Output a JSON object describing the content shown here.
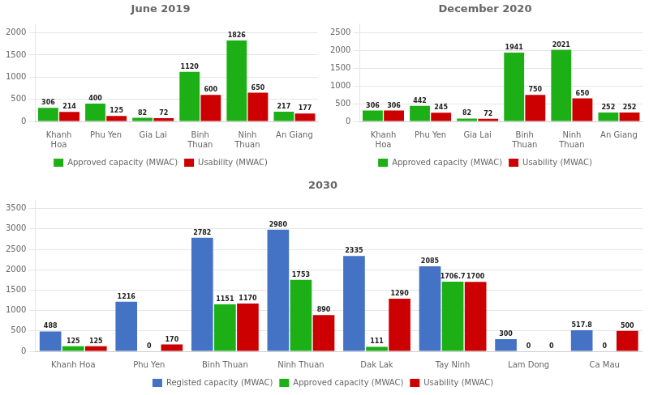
{
  "chart_data": [
    {
      "type": "bar",
      "title": "June 2019",
      "categories": [
        "Khanh\nHoa",
        "Phu Yen",
        "Gia Lai",
        "Binh\nThuan",
        "Ninh\nThuan",
        "An Giang"
      ],
      "series": [
        {
          "name": "Approved capacity (MWAC)",
          "color": "#1DB016",
          "values": [
            306,
            400,
            82,
            1120,
            1826,
            217
          ]
        },
        {
          "name": "Usability (MWAC)",
          "color": "#CC0000",
          "values": [
            214,
            125,
            72,
            600,
            650,
            177
          ]
        }
      ],
      "ylim": [
        0,
        2200
      ],
      "yticks": [
        0,
        500,
        1000,
        1500,
        2000
      ],
      "grid": true,
      "legend": "bottom",
      "data_labels": true
    },
    {
      "type": "bar",
      "title": "December 2020",
      "categories": [
        "Khanh\nHoa",
        "Phu Yen",
        "Gia Lai",
        "Binh\nThuan",
        "Ninh\nThuan",
        "An Giang"
      ],
      "series": [
        {
          "name": "Approved capacity (MWAC)",
          "color": "#1DB016",
          "values": [
            306,
            442,
            82,
            1941,
            2021,
            252
          ]
        },
        {
          "name": "Usability (MWAC)",
          "color": "#CC0000",
          "values": [
            306,
            245,
            72,
            750,
            650,
            252
          ]
        }
      ],
      "ylim": [
        0,
        2750
      ],
      "yticks": [
        0,
        500,
        1000,
        1500,
        2000,
        2500
      ],
      "grid": true,
      "legend": "bottom",
      "data_labels": true
    },
    {
      "type": "bar",
      "title": "2030",
      "categories": [
        "Khanh Hoa",
        "Phu Yen",
        "Binh Thuan",
        "Ninh Thuan",
        "Dak Lak",
        "Tay Ninh",
        "Lam Dong",
        "Ca Mau"
      ],
      "series": [
        {
          "name": "Registed capacity (MWAC)",
          "color": "#4472C4",
          "values": [
            488,
            1216,
            2782,
            2980,
            2335,
            2085,
            300,
            517.8
          ]
        },
        {
          "name": "Approved capacity (MWAC)",
          "color": "#1DB016",
          "values": [
            125,
            0,
            1151,
            1753,
            111,
            1706.7,
            0,
            0
          ]
        },
        {
          "name": "Usability (MWAC)",
          "color": "#CC0000",
          "values": [
            125,
            170,
            1170,
            890,
            1290,
            1700,
            0,
            500
          ]
        }
      ],
      "ylim": [
        0,
        3700
      ],
      "yticks": [
        0,
        500,
        1000,
        1500,
        2000,
        2500,
        3000,
        3500
      ],
      "grid": true,
      "legend": "bottom",
      "data_labels": true
    }
  ]
}
